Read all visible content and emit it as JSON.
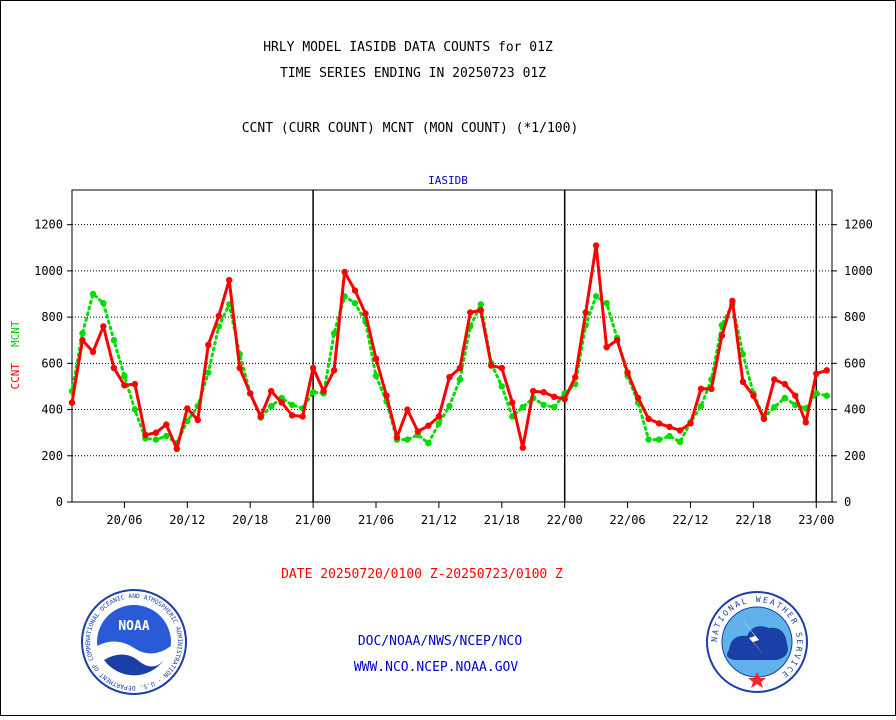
{
  "header": {
    "title_line1": "HRLY MODEL IASIDB DATA COUNTS for 01Z",
    "title_line2": "TIME SERIES ENDING IN 20250723 01Z",
    "subtitle": "CCNT (CURR COUNT) MCNT (MON COUNT) (*1/100)"
  },
  "footer": {
    "date_range": "DATE 20250720/0100 Z-20250723/0100 Z",
    "org_line": "DOC/NOAA/NWS/NCEP/NCO",
    "web_line": "WWW.NCO.NCEP.NOAA.GOV"
  },
  "logos": {
    "noaa_text": "NOAA",
    "noaa_ring": "NATIONAL OCEANIC AND ATMOSPHERIC ADMINISTRATION · U.S. DEPARTMENT OF COMMERCE",
    "nws_ring": "NATIONAL WEATHER SERVICE"
  },
  "colors": {
    "ccnt": "#ff0000",
    "mcnt": "#00dd00",
    "axis_text": "#000000",
    "panel_label": "#0000cc",
    "footer_link": "#0000cc",
    "date_text": "#ff0000"
  },
  "chart_data": {
    "type": "line",
    "panel_label": "IASIDB",
    "ylabel_ccnt": "CCNT",
    "ylabel_mcnt": "MCNT",
    "ylim": [
      0,
      1350
    ],
    "y_ticks": [
      0,
      200,
      400,
      600,
      800,
      1000,
      1200
    ],
    "x_range_hours": [
      0,
      72.5
    ],
    "x_ticks": [
      {
        "h": 5,
        "label": "20/06"
      },
      {
        "h": 11,
        "label": "20/12"
      },
      {
        "h": 17,
        "label": "20/18"
      },
      {
        "h": 23,
        "label": "21/00"
      },
      {
        "h": 29,
        "label": "21/06"
      },
      {
        "h": 35,
        "label": "21/12"
      },
      {
        "h": 41,
        "label": "21/18"
      },
      {
        "h": 47,
        "label": "22/00"
      },
      {
        "h": 53,
        "label": "22/06"
      },
      {
        "h": 59,
        "label": "22/12"
      },
      {
        "h": 65,
        "label": "22/18"
      },
      {
        "h": 71,
        "label": "23/00"
      }
    ],
    "day_boundaries_h": [
      23,
      47,
      71
    ],
    "grid": "horizontal dotted",
    "series": [
      {
        "name": "CCNT",
        "style": "solid",
        "values": [
          430,
          700,
          650,
          760,
          580,
          505,
          510,
          290,
          300,
          335,
          230,
          405,
          355,
          680,
          805,
          960,
          580,
          470,
          370,
          480,
          430,
          375,
          370,
          580,
          480,
          570,
          995,
          915,
          815,
          620,
          460,
          280,
          400,
          305,
          330,
          370,
          540,
          580,
          820,
          830,
          590,
          580,
          430,
          235,
          480,
          475,
          455,
          445,
          540,
          820,
          1110,
          670,
          700,
          560,
          450,
          360,
          340,
          325,
          310,
          340,
          490,
          490,
          720,
          870,
          520,
          460,
          360,
          530,
          510,
          460,
          345,
          555,
          570
        ]
      },
      {
        "name": "MCNT",
        "style": "dotted",
        "values": [
          480,
          730,
          900,
          860,
          700,
          545,
          400,
          275,
          270,
          285,
          255,
          350,
          415,
          560,
          760,
          855,
          640,
          470,
          365,
          415,
          450,
          420,
          405,
          475,
          470,
          730,
          890,
          860,
          780,
          545,
          435,
          270,
          270,
          290,
          255,
          340,
          415,
          530,
          760,
          855,
          600,
          500,
          370,
          410,
          450,
          420,
          410,
          470,
          510,
          765,
          890,
          860,
          710,
          545,
          430,
          270,
          270,
          285,
          260,
          345,
          415,
          530,
          765,
          855,
          640,
          470,
          365,
          410,
          450,
          420,
          405,
          470,
          460
        ]
      }
    ]
  }
}
